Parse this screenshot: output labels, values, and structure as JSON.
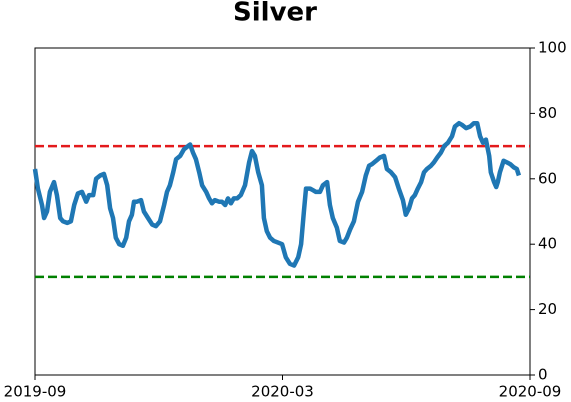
{
  "chart_data": {
    "type": "line",
    "title": "Silver",
    "x": [
      0,
      0.07,
      0.17,
      0.22,
      0.29,
      0.36,
      0.46,
      0.53,
      0.61,
      0.68,
      0.78,
      0.87,
      0.95,
      1.04,
      1.14,
      1.24,
      1.31,
      1.41,
      1.48,
      1.58,
      1.67,
      1.75,
      1.82,
      1.89,
      1.96,
      2.04,
      2.13,
      2.21,
      2.28,
      2.35,
      2.4,
      2.47,
      2.57,
      2.64,
      2.74,
      2.84,
      2.93,
      3.03,
      3.13,
      3.2,
      3.27,
      3.35,
      3.42,
      3.52,
      3.61,
      3.71,
      3.76,
      3.83,
      3.9,
      3.98,
      4.05,
      4.15,
      4.22,
      4.29,
      4.36,
      4.46,
      4.53,
      4.61,
      4.68,
      4.75,
      4.82,
      4.9,
      4.99,
      5.09,
      5.19,
      5.26,
      5.33,
      5.41,
      5.5,
      5.55,
      5.62,
      5.7,
      5.79,
      5.89,
      5.99,
      6.08,
      6.18,
      6.28,
      6.38,
      6.45,
      6.52,
      6.57,
      6.67,
      6.74,
      6.81,
      6.91,
      6.98,
      7.08,
      7.15,
      7.22,
      7.32,
      7.39,
      7.49,
      7.56,
      7.64,
      7.73,
      7.83,
      7.93,
      8.02,
      8.1,
      8.17,
      8.27,
      8.36,
      8.46,
      8.53,
      8.63,
      8.73,
      8.82,
      8.92,
      8.99,
      9.07,
      9.14,
      9.21,
      9.28,
      9.36,
      9.43,
      9.5,
      9.6,
      9.67,
      9.75,
      9.84,
      9.92,
      10.01,
      10.11,
      10.18,
      10.28,
      10.35,
      10.45,
      10.55,
      10.64,
      10.72,
      10.79,
      10.86,
      10.93,
      11.01,
      11.05,
      11.13,
      11.18,
      11.22,
      11.27,
      11.36,
      11.44,
      11.52,
      11.61,
      11.68,
      11.73
    ],
    "series": [
      {
        "color": "#1f77b4",
        "values": [
          63,
          57,
          52,
          48,
          50,
          56,
          59,
          55,
          48,
          47,
          46.5,
          47,
          52,
          55.5,
          56,
          53,
          55,
          55,
          60,
          61,
          61.5,
          58,
          51,
          48,
          42,
          40,
          39.5,
          42,
          47,
          49,
          53,
          53,
          53.5,
          50,
          48,
          46,
          45.5,
          47,
          52,
          56,
          58,
          62,
          66,
          67,
          69,
          70,
          70.5,
          68,
          66,
          62,
          58,
          56,
          54,
          52.5,
          53.5,
          53,
          53,
          52,
          54,
          52.5,
          54,
          54,
          55,
          58,
          65,
          68.5,
          67,
          62,
          58,
          48,
          44,
          42,
          41,
          40.5,
          40,
          36,
          34,
          33.5,
          36,
          40,
          50,
          57,
          57,
          56.5,
          56,
          56,
          58,
          59,
          52,
          48,
          45,
          41,
          40.5,
          42,
          44.5,
          47,
          53,
          56,
          61,
          64,
          64.5,
          65.5,
          66.5,
          67,
          63,
          62,
          60.5,
          57,
          53.5,
          49,
          51,
          54,
          55,
          57,
          59,
          62,
          63,
          64,
          65,
          66.5,
          68,
          70,
          71,
          73,
          76,
          77,
          76.5,
          75.5,
          76,
          77,
          77,
          73,
          71,
          72,
          67,
          62,
          59,
          57.5,
          59,
          62,
          65.5,
          65,
          64.5,
          63.5,
          63,
          61
        ]
      }
    ],
    "hlines": [
      {
        "value": 70,
        "color": "#e31a1c"
      },
      {
        "value": 30,
        "color": "#008000"
      }
    ],
    "xlim": [
      0,
      12
    ],
    "xticks": [
      {
        "value": 0,
        "label": "2019-09"
      },
      {
        "value": 6,
        "label": "2020-03"
      },
      {
        "value": 12,
        "label": "2020-09"
      }
    ],
    "ylim": [
      0,
      100
    ],
    "yticks": [
      0,
      20,
      40,
      60,
      80,
      100
    ]
  }
}
